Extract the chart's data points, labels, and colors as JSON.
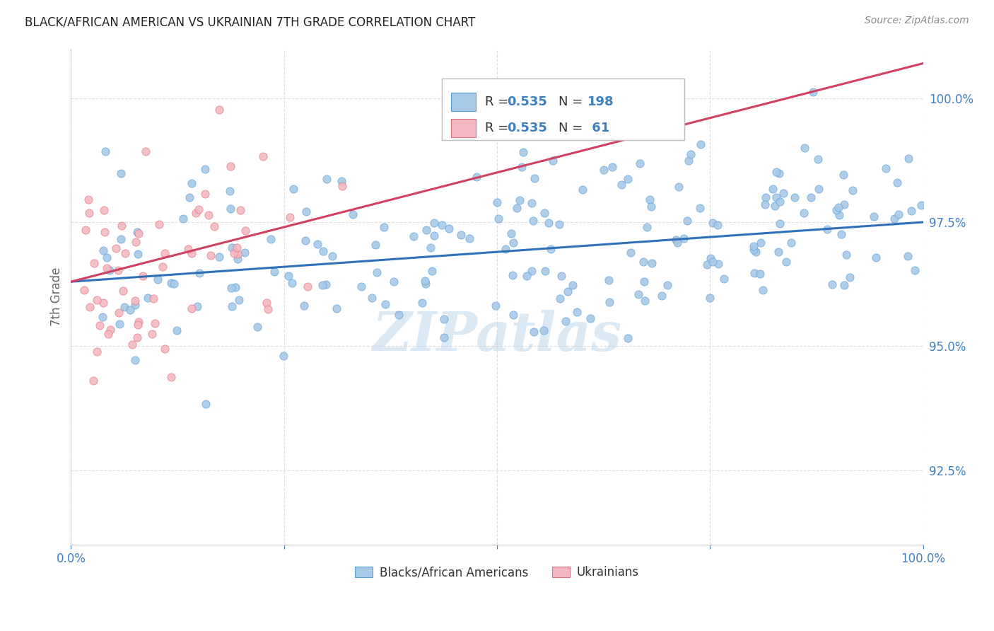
{
  "title": "BLACK/AFRICAN AMERICAN VS UKRAINIAN 7TH GRADE CORRELATION CHART",
  "source": "Source: ZipAtlas.com",
  "ylabel": "7th Grade",
  "ytick_labels": [
    "92.5%",
    "95.0%",
    "97.5%",
    "100.0%"
  ],
  "ytick_values": [
    0.925,
    0.95,
    0.975,
    1.0
  ],
  "ymin": 0.91,
  "ymax": 1.01,
  "blue_R": 0.535,
  "blue_N": 198,
  "pink_R": 0.535,
  "pink_N": 61,
  "blue_color": "#a8c8e8",
  "blue_edge_color": "#5a9fd4",
  "pink_color": "#f4b8c0",
  "pink_edge_color": "#e07080",
  "blue_line_color": "#3070b8",
  "pink_line_color": "#d04060",
  "legend_blue_label": "Blacks/African Americans",
  "legend_pink_label": "Ukrainians",
  "watermark": "ZIPatlas",
  "background_color": "#ffffff",
  "grid_color": "#dddddd",
  "title_color": "#222222",
  "source_color": "#888888",
  "tick_color": "#4080c0",
  "ylabel_color": "#666666"
}
